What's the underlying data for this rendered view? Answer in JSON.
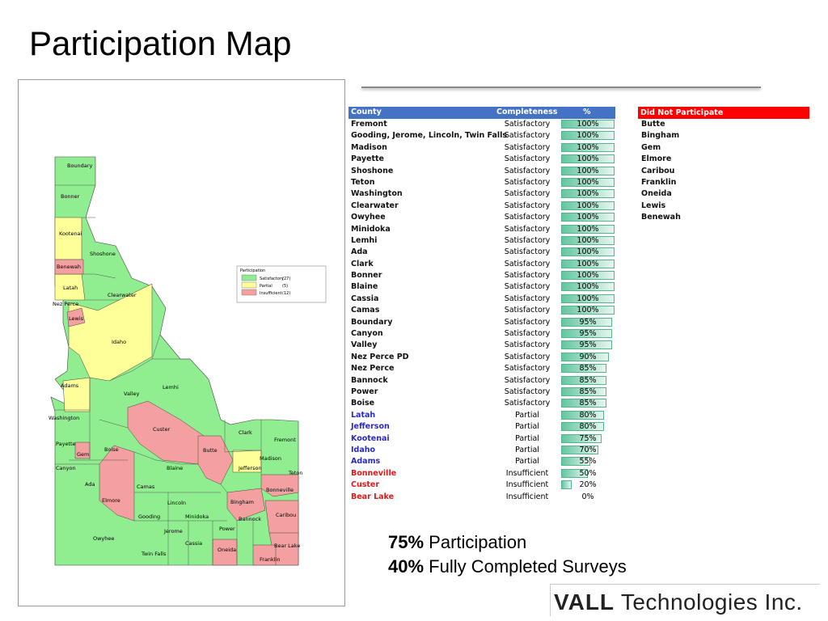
{
  "title": "Participation Map",
  "table": {
    "headers": {
      "county": "County",
      "completeness": "Completeness",
      "percent": "%"
    },
    "rows": [
      {
        "county": "Fremont",
        "completeness": "Satisfactory",
        "percent": "100%",
        "value": 100
      },
      {
        "county": "Gooding, Jerome, Lincoln, Twin Falls",
        "completeness": "Satisfactory",
        "percent": "100%",
        "value": 100
      },
      {
        "county": "Madison",
        "completeness": "Satisfactory",
        "percent": "100%",
        "value": 100
      },
      {
        "county": "Payette",
        "completeness": "Satisfactory",
        "percent": "100%",
        "value": 100
      },
      {
        "county": "Shoshone",
        "completeness": "Satisfactory",
        "percent": "100%",
        "value": 100
      },
      {
        "county": "Teton",
        "completeness": "Satisfactory",
        "percent": "100%",
        "value": 100
      },
      {
        "county": "Washington",
        "completeness": "Satisfactory",
        "percent": "100%",
        "value": 100
      },
      {
        "county": "Clearwater",
        "completeness": "Satisfactory",
        "percent": "100%",
        "value": 100
      },
      {
        "county": "Owyhee",
        "completeness": "Satisfactory",
        "percent": "100%",
        "value": 100
      },
      {
        "county": "Minidoka",
        "completeness": "Satisfactory",
        "percent": "100%",
        "value": 100
      },
      {
        "county": "Lemhi",
        "completeness": "Satisfactory",
        "percent": "100%",
        "value": 100
      },
      {
        "county": "Ada",
        "completeness": "Satisfactory",
        "percent": "100%",
        "value": 100
      },
      {
        "county": "Clark",
        "completeness": "Satisfactory",
        "percent": "100%",
        "value": 100
      },
      {
        "county": "Bonner",
        "completeness": "Satisfactory",
        "percent": "100%",
        "value": 100
      },
      {
        "county": "Blaine",
        "completeness": "Satisfactory",
        "percent": "100%",
        "value": 100
      },
      {
        "county": "Cassia",
        "completeness": "Satisfactory",
        "percent": "100%",
        "value": 100
      },
      {
        "county": "Camas",
        "completeness": "Satisfactory",
        "percent": "100%",
        "value": 100
      },
      {
        "county": "Boundary",
        "completeness": "Satisfactory",
        "percent": "95%",
        "value": 95
      },
      {
        "county": "Canyon",
        "completeness": "Satisfactory",
        "percent": "95%",
        "value": 95
      },
      {
        "county": "Valley",
        "completeness": "Satisfactory",
        "percent": "95%",
        "value": 95
      },
      {
        "county": "Nez Perce PD",
        "completeness": "Satisfactory",
        "percent": "90%",
        "value": 90
      },
      {
        "county": "Nez Perce",
        "completeness": "Satisfactory",
        "percent": "85%",
        "value": 85
      },
      {
        "county": "Bannock",
        "completeness": "Satisfactory",
        "percent": "85%",
        "value": 85
      },
      {
        "county": "Power",
        "completeness": "Satisfactory",
        "percent": "85%",
        "value": 85
      },
      {
        "county": "Boise",
        "completeness": "Satisfactory",
        "percent": "85%",
        "value": 85
      },
      {
        "county": "Latah",
        "completeness": "Partial",
        "percent": "80%",
        "value": 80
      },
      {
        "county": "Jefferson",
        "completeness": "Partial",
        "percent": "80%",
        "value": 80
      },
      {
        "county": "Kootenai",
        "completeness": "Partial",
        "percent": "75%",
        "value": 75
      },
      {
        "county": "Idaho",
        "completeness": "Partial",
        "percent": "70%",
        "value": 70
      },
      {
        "county": "Adams",
        "completeness": "Partial",
        "percent": "55%",
        "value": 55
      },
      {
        "county": "Bonneville",
        "completeness": "Insufficient",
        "percent": "50%",
        "value": 50
      },
      {
        "county": "Custer",
        "completeness": "Insufficient",
        "percent": "20%",
        "value": 20
      },
      {
        "county": "Bear Lake",
        "completeness": "Insufficient",
        "percent": "0%",
        "value": 0
      }
    ]
  },
  "did_not_participate": {
    "header": "Did Not Participate",
    "counties": [
      "Butte",
      "Bingham",
      "Gem",
      "Elmore",
      "Caribou",
      "Franklin",
      "Oneida",
      "Lewis",
      "Benewah"
    ]
  },
  "stats": [
    {
      "value": "75%",
      "label": "Participation"
    },
    {
      "value": "40%",
      "label": "Fully Completed Surveys"
    }
  ],
  "logo": {
    "part1": "VALL",
    "part2": "Technologies Inc."
  },
  "map": {
    "colors": {
      "satisfactory": "#90ee90",
      "partial": "#ffff99",
      "insufficient": "#f4a0a0"
    },
    "legend": {
      "title": "Participation",
      "items": [
        {
          "label": "Satisfactory",
          "count": "(27)"
        },
        {
          "label": "Partial",
          "count": "(5)"
        },
        {
          "label": "Insufficient",
          "count": "(12)"
        }
      ]
    },
    "labels": [
      "Boundary",
      "Bonner",
      "Kootenai",
      "Shoshone",
      "Benewah",
      "Latah",
      "Clearwater",
      "Nez Perce",
      "Lewis",
      "Idaho",
      "Adams",
      "Valley",
      "Lemhi",
      "Washington",
      "Custer",
      "Clark",
      "Fremont",
      "Payette",
      "Gem",
      "Boise",
      "Butte",
      "Madison",
      "Canyon",
      "Jefferson",
      "Teton",
      "Blaine",
      "Ada",
      "Camas",
      "Bonneville",
      "Elmore",
      "Lincoln",
      "Bingham",
      "Gooding",
      "Minidoka",
      "Bannock",
      "Caribou",
      "Jerome",
      "Power",
      "Owyhee",
      "Cassia",
      "Oneida",
      "Bear Lake",
      "Twin Falls",
      "Franklin"
    ]
  }
}
